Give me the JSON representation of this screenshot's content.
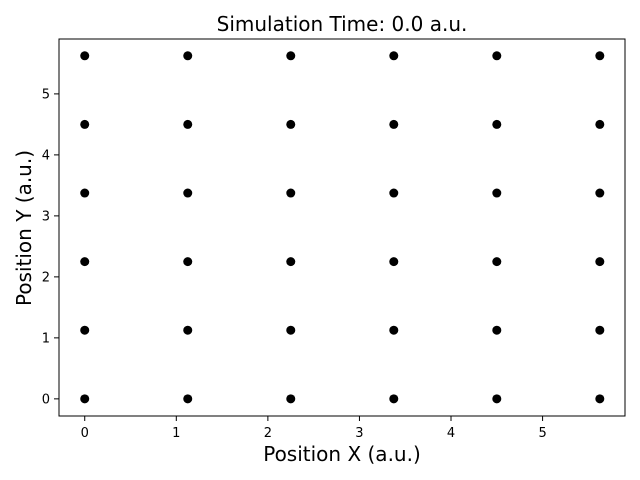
{
  "chart_data": {
    "type": "scatter",
    "title": "Simulation Time: 0.0 a.u.",
    "xlabel": "Position X (a.u.)",
    "ylabel": "Position Y (a.u.)",
    "xlim": [
      -0.281,
      5.9
    ],
    "ylim": [
      -0.281,
      5.9
    ],
    "xticks": [
      "0",
      "1",
      "2",
      "3",
      "4",
      "5"
    ],
    "yticks": [
      "0",
      "1",
      "2",
      "3",
      "4",
      "5"
    ],
    "grid": false,
    "marker_color": "#000000",
    "series": [
      {
        "x": [
          0,
          1.125,
          2.25,
          3.375,
          4.5,
          5.625,
          0,
          1.125,
          2.25,
          3.375,
          4.5,
          5.625,
          0,
          1.125,
          2.25,
          3.375,
          4.5,
          5.625,
          0,
          1.125,
          2.25,
          3.375,
          4.5,
          5.625,
          0,
          1.125,
          2.25,
          3.375,
          4.5,
          5.625,
          0,
          1.125,
          2.25,
          3.375,
          4.5,
          5.625
        ],
        "y": [
          0,
          0,
          0,
          0,
          0,
          0,
          1.125,
          1.125,
          1.125,
          1.125,
          1.125,
          1.125,
          2.25,
          2.25,
          2.25,
          2.25,
          2.25,
          2.25,
          3.375,
          3.375,
          3.375,
          3.375,
          3.375,
          3.375,
          4.5,
          4.5,
          4.5,
          4.5,
          4.5,
          4.5,
          5.625,
          5.625,
          5.625,
          5.625,
          5.625,
          5.625
        ]
      }
    ]
  }
}
